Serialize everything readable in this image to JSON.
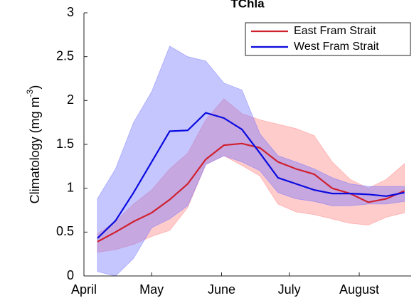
{
  "chart_data": {
    "type": "line",
    "title": "TChla",
    "ylabel": [
      "Climatology (mg m",
      "-3",
      ")"
    ],
    "x": [
      6,
      14,
      22,
      30,
      38,
      46,
      54,
      62,
      70,
      78,
      86,
      94,
      102,
      110,
      118,
      126,
      134,
      142
    ],
    "xlim": [
      0,
      145
    ],
    "xticks": [
      {
        "value": 0,
        "label": "April"
      },
      {
        "value": 30,
        "label": "May"
      },
      {
        "value": 61,
        "label": "June"
      },
      {
        "value": 91,
        "label": "July"
      },
      {
        "value": 122,
        "label": "August"
      }
    ],
    "ylim": [
      0,
      3
    ],
    "yticks": [
      0,
      0.5,
      1,
      1.5,
      2,
      2.5,
      3
    ],
    "legend": "upper right",
    "series": [
      {
        "name": "East Fram Strait",
        "color": "#d0202e",
        "band_color": "#ff8080",
        "values": [
          0.39,
          0.5,
          0.62,
          0.72,
          0.87,
          1.05,
          1.33,
          1.49,
          1.51,
          1.46,
          1.3,
          1.22,
          1.16,
          1.0,
          0.94,
          0.84,
          0.88,
          0.97
        ],
        "upper": [
          0.48,
          0.62,
          0.82,
          0.98,
          1.22,
          1.4,
          1.78,
          2.02,
          1.85,
          1.78,
          1.73,
          1.68,
          1.6,
          1.3,
          1.1,
          1.0,
          1.1,
          1.28
        ],
        "lower": [
          0.27,
          0.3,
          0.36,
          0.45,
          0.52,
          0.78,
          1.27,
          1.37,
          1.26,
          1.14,
          0.82,
          0.73,
          0.7,
          0.65,
          0.6,
          0.58,
          0.67,
          0.72
        ]
      },
      {
        "name": "West Fram Strait",
        "color": "#0a0ae0",
        "band_color": "#7070ff",
        "values": [
          0.43,
          0.63,
          0.95,
          1.3,
          1.65,
          1.66,
          1.86,
          1.8,
          1.67,
          1.4,
          1.12,
          1.05,
          0.98,
          0.94,
          0.94,
          0.93,
          0.91,
          0.95
        ],
        "upper": [
          0.88,
          1.22,
          1.75,
          2.1,
          2.62,
          2.5,
          2.45,
          2.2,
          2.12,
          1.62,
          1.37,
          1.3,
          1.22,
          1.12,
          1.05,
          1.02,
          1.02,
          1.02
        ],
        "lower": [
          0.05,
          0.0,
          0.2,
          0.55,
          0.65,
          0.8,
          1.27,
          1.37,
          1.3,
          1.2,
          0.95,
          0.88,
          0.85,
          0.8,
          0.8,
          0.82,
          0.82,
          0.85
        ]
      }
    ]
  }
}
